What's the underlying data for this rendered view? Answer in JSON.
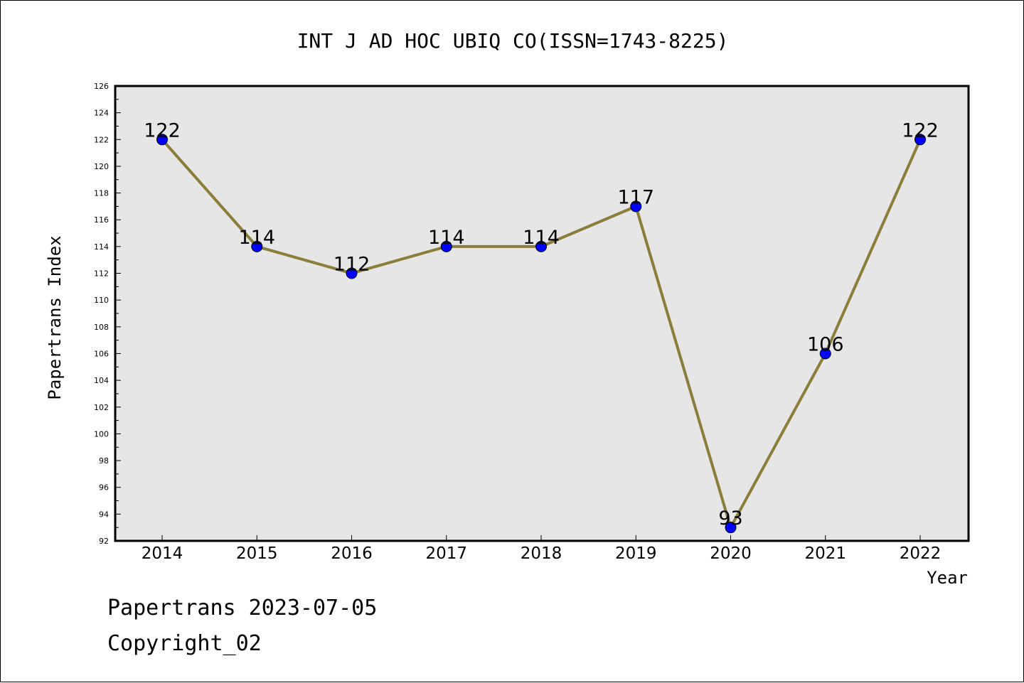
{
  "chart_data": {
    "type": "line",
    "title": "INT J AD HOC UBIQ CO(ISSN=1743-8225)",
    "xlabel": "Year",
    "ylabel": "Papertrans Index",
    "categories": [
      "2014",
      "2015",
      "2016",
      "2017",
      "2018",
      "2019",
      "2020",
      "2021",
      "2022"
    ],
    "series": [
      {
        "values": [
          122,
          114,
          112,
          114,
          114,
          117,
          93,
          106,
          122
        ]
      }
    ],
    "ylim": [
      92,
      126
    ],
    "yticks": [
      "92",
      "94",
      "96",
      "98",
      "100",
      "102",
      "104",
      "106",
      "108",
      "110",
      "112",
      "114",
      "116",
      "118",
      "120",
      "122",
      "124",
      "126"
    ],
    "data_labels": [
      "122",
      "114",
      "112",
      "114",
      "114",
      "117",
      "93",
      "106",
      "122"
    ],
    "grid": false,
    "colors": {
      "line": "#8B7D3A",
      "marker": "#0000FF",
      "plot_background": "#E6E6E6"
    }
  },
  "footer": {
    "line1": "Papertrans 2023-07-05",
    "line2": "Copyright_02"
  }
}
